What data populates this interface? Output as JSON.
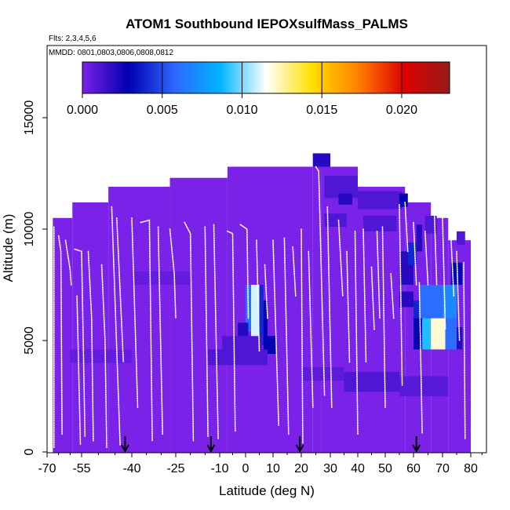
{
  "chart_data": {
    "type": "heatmap",
    "title": "ATOM1 Southbound IEPOXsulfMass_PALMS",
    "flights_note": "Flts: 2,3,4,5,6",
    "dates_note": "MMDD: 0801,0803,0806,0808,0812",
    "xlabel": "Latitude (deg N)",
    "ylabel": "Altitude (m)",
    "xlim": [
      -70,
      87
    ],
    "ylim": [
      0,
      17500
    ],
    "xticks": [
      -70,
      -55,
      -40,
      -25,
      -10,
      0,
      10,
      20,
      30,
      40,
      50,
      60,
      70,
      80
    ],
    "xtick_labels": [
      "-70",
      "-55",
      "-40",
      "-25",
      "-10",
      "0",
      "10",
      "20",
      "30",
      "40",
      "50",
      "60",
      "70",
      "80"
    ],
    "yticks": [
      0,
      5000,
      10000,
      15000
    ],
    "ytick_labels": [
      "0",
      "5000",
      "10000",
      "15000"
    ],
    "colorbar": {
      "min": 0.0,
      "max": 0.023,
      "ticks": [
        0.0,
        0.005,
        0.01,
        0.015,
        0.02
      ],
      "tick_labels": [
        "0.000",
        "0.005",
        "0.010",
        "0.015",
        "0.020"
      ],
      "colors": [
        "#7b22e8",
        "#0000b0",
        "#2f66ff",
        "#00b4ff",
        "#ffffff",
        "#ffe000",
        "#ff8000",
        "#dd0000",
        "#9a1a1a"
      ],
      "stops": [
        0,
        0.006,
        0.011,
        0.017,
        0.023
      ]
    },
    "background_value": 0.0,
    "base_fill_color": "#7b22e8",
    "envelope": [
      {
        "x": [
          -67.5,
          -59
        ],
        "alt": 10500
      },
      {
        "x": [
          -59,
          -47
        ],
        "alt": 11200
      },
      {
        "x": [
          -47,
          -27
        ],
        "alt": 11900
      },
      {
        "x": [
          -27,
          -7
        ],
        "alt": 12300
      },
      {
        "x": [
          -7,
          24
        ],
        "alt": 12800
      },
      {
        "x": [
          24,
          27
        ],
        "alt": 13400
      },
      {
        "x": [
          27,
          40
        ],
        "alt": 12800
      },
      {
        "x": [
          40,
          57
        ],
        "alt": 11900
      },
      {
        "x": [
          57,
          66
        ],
        "alt": 11200
      },
      {
        "x": [
          66,
          72
        ],
        "alt": 10500
      },
      {
        "x": [
          72,
          80
        ],
        "alt": 9500
      }
    ],
    "cells": [
      {
        "lat": [
          0,
          2
        ],
        "alt": [
          5400,
          7500
        ],
        "v": 0.006
      },
      {
        "lat": [
          2,
          5
        ],
        "alt": [
          4800,
          7500
        ],
        "v": 0.011
      },
      {
        "lat": [
          5,
          6.5
        ],
        "alt": [
          4800,
          7500
        ],
        "v": 0.004
      },
      {
        "lat": [
          6.5,
          8
        ],
        "alt": [
          4400,
          6800
        ],
        "v": 0.003
      },
      {
        "lat": [
          8,
          11
        ],
        "alt": [
          4400,
          5200
        ],
        "v": 0.003
      },
      {
        "lat": [
          -14,
          8
        ],
        "alt": [
          3900,
          4600
        ],
        "v": 0.001
      },
      {
        "lat": [
          -9,
          6
        ],
        "alt": [
          4600,
          5200
        ],
        "v": 0.001
      },
      {
        "lat": [
          -3,
          1
        ],
        "alt": [
          5200,
          5800
        ],
        "v": 0.002
      },
      {
        "lat": [
          62,
          70
        ],
        "alt": [
          6000,
          7500
        ],
        "v": 0.006
      },
      {
        "lat": [
          70,
          75
        ],
        "alt": [
          6000,
          7500
        ],
        "v": 0.007
      },
      {
        "lat": [
          60,
          62
        ],
        "alt": [
          5400,
          6800
        ],
        "v": 0.004
      },
      {
        "lat": [
          60,
          63
        ],
        "alt": [
          4600,
          6000
        ],
        "v": 0.003
      },
      {
        "lat": [
          63,
          66
        ],
        "alt": [
          4600,
          6000
        ],
        "v": 0.009
      },
      {
        "lat": [
          66,
          71
        ],
        "alt": [
          4600,
          6000
        ],
        "v": 0.012
      },
      {
        "lat": [
          71,
          75
        ],
        "alt": [
          4600,
          6000
        ],
        "v": 0.006
      },
      {
        "lat": [
          75,
          77
        ],
        "alt": [
          4600,
          5600
        ],
        "v": 0.002
      },
      {
        "lat": [
          55,
          60
        ],
        "alt": [
          7500,
          9000
        ],
        "v": 0.002
      },
      {
        "lat": [
          73,
          77
        ],
        "alt": [
          7500,
          8500
        ],
        "v": 0.003
      },
      {
        "lat": [
          58,
          61
        ],
        "alt": [
          8400,
          9400
        ],
        "v": 0.004
      },
      {
        "lat": [
          61,
          63
        ],
        "alt": [
          9000,
          10200
        ],
        "v": 0.002
      },
      {
        "lat": [
          28,
          40
        ],
        "alt": [
          11400,
          12400
        ],
        "v": 0.001
      },
      {
        "lat": [
          33,
          38
        ],
        "alt": [
          11100,
          11600
        ],
        "v": 0.002
      },
      {
        "lat": [
          40,
          56
        ],
        "alt": [
          10900,
          11700
        ],
        "v": 0.001
      },
      {
        "lat": [
          55,
          58
        ],
        "alt": [
          11000,
          11600
        ],
        "v": 0.003
      },
      {
        "lat": [
          24,
          30
        ],
        "alt": [
          12800,
          13400
        ],
        "v": 0.002
      },
      {
        "lat": [
          42,
          54
        ],
        "alt": [
          9900,
          10600
        ],
        "v": 0.001
      },
      {
        "lat": [
          28,
          36
        ],
        "alt": [
          10100,
          10700
        ],
        "v": 0.001
      },
      {
        "lat": [
          64,
          68
        ],
        "alt": [
          9800,
          10600
        ],
        "v": 0.001
      },
      {
        "lat": [
          75,
          78
        ],
        "alt": [
          9300,
          9900
        ],
        "v": 0.001
      },
      {
        "lat": [
          -60,
          -40
        ],
        "alt": [
          4000,
          4600
        ],
        "v": 0.0005
      },
      {
        "lat": [
          35,
          55
        ],
        "alt": [
          2700,
          3600
        ],
        "v": 0.001
      },
      {
        "lat": [
          55,
          72
        ],
        "alt": [
          2500,
          3400
        ],
        "v": 0.0008
      },
      {
        "lat": [
          20,
          35
        ],
        "alt": [
          3200,
          3800
        ],
        "v": 0.0007
      },
      {
        "lat": [
          -40,
          -20
        ],
        "alt": [
          7500,
          8100
        ],
        "v": 0.0005
      },
      {
        "lat": [
          55,
          60
        ],
        "alt": [
          6500,
          7200
        ],
        "v": 0.002
      }
    ],
    "flight_tracks": [
      [
        -67,
        10100,
        -67,
        200
      ],
      [
        -65,
        9700,
        -64,
        9000,
        -63.5,
        800
      ],
      [
        -62,
        9500,
        -60,
        8200,
        -59.5,
        7500
      ],
      [
        -58,
        9100,
        -55,
        9000,
        -54,
        700
      ],
      [
        -57,
        7000,
        -55.5,
        300
      ],
      [
        -53,
        9000,
        -52,
        6000,
        -51.5,
        500
      ],
      [
        -49,
        8400,
        -48,
        5000,
        -47.5,
        200
      ],
      [
        -46,
        11000,
        -43.5,
        300
      ],
      [
        -44.5,
        10500,
        -42.5,
        4000
      ],
      [
        -40,
        10500,
        -38,
        2000
      ],
      [
        -37,
        10300,
        -34,
        10400,
        -33,
        500
      ],
      [
        -31,
        10100,
        -29.5,
        800
      ],
      [
        -27,
        10000,
        -25.5,
        8000,
        -25,
        6000
      ],
      [
        -22,
        10300,
        -20,
        9800,
        -19,
        500
      ],
      [
        -15,
        10100,
        -14,
        700
      ],
      [
        -12,
        10200,
        -10.5,
        600
      ],
      [
        -7,
        9900,
        -5,
        9800,
        -4,
        900
      ],
      [
        -2,
        10200,
        0.5,
        10000,
        1,
        6000
      ],
      [
        4,
        9500,
        5,
        4500
      ],
      [
        7,
        8400,
        8,
        6000
      ],
      [
        10,
        9500,
        12,
        1200
      ],
      [
        14,
        9600,
        15.5,
        800
      ],
      [
        17,
        9200,
        18,
        7000
      ],
      [
        20,
        10000,
        20.5,
        400
      ],
      [
        22.5,
        9000,
        24,
        2000
      ],
      [
        25,
        12800,
        26,
        12600,
        28,
        2500
      ],
      [
        29,
        11000,
        30.5,
        2000
      ],
      [
        33,
        10400,
        34.5,
        7000
      ],
      [
        36,
        9000,
        37,
        4000
      ],
      [
        39,
        9900,
        40,
        800
      ],
      [
        42,
        10000,
        43,
        4000
      ],
      [
        45,
        8300,
        46,
        5500
      ],
      [
        47,
        9900,
        48,
        6000
      ],
      [
        49,
        10100,
        50,
        2000
      ],
      [
        52,
        8000,
        53,
        6000
      ],
      [
        55,
        11100,
        56,
        3000
      ],
      [
        57,
        11200,
        58,
        9000
      ],
      [
        60,
        10300,
        61,
        7500
      ],
      [
        62,
        7600,
        63,
        800
      ],
      [
        64,
        9900,
        65,
        7500
      ],
      [
        67,
        11500,
        68,
        7500
      ],
      [
        70,
        10500,
        71,
        5500
      ],
      [
        73,
        9600,
        74,
        7000
      ],
      [
        75,
        9000,
        76,
        5000
      ],
      [
        77.5,
        8500,
        78,
        600
      ]
    ],
    "arrows_lat": [
      -42,
      -13,
      19.5,
      61
    ]
  }
}
